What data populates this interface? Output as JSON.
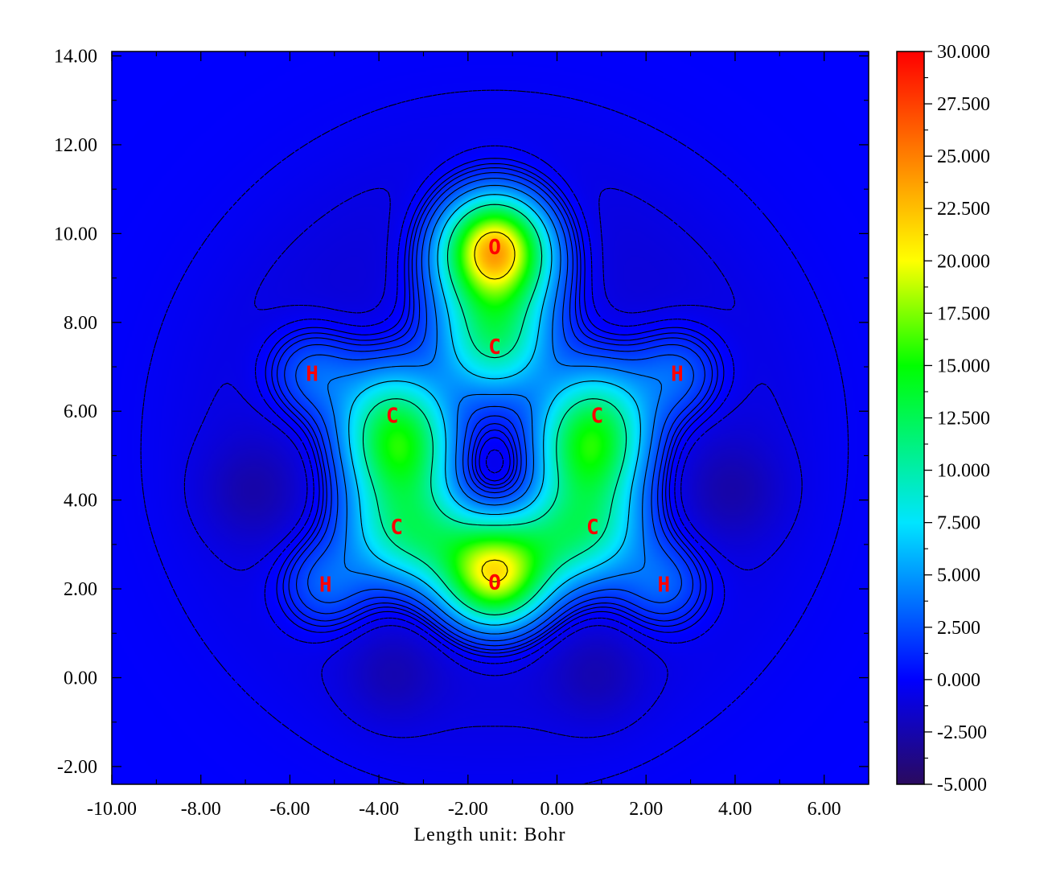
{
  "chart_data": {
    "type": "heatmap",
    "title": "",
    "xlabel": "Length unit: Bohr",
    "ylabel": "",
    "xlim": [
      -10.0,
      7.0
    ],
    "ylim": [
      -2.4,
      14.1
    ],
    "x_ticks": [
      "-10.00",
      "-8.00",
      "-6.00",
      "-4.00",
      "-2.00",
      "0.00",
      "2.00",
      "4.00",
      "6.00"
    ],
    "y_ticks": [
      "-2.00",
      "0.00",
      "2.00",
      "4.00",
      "6.00",
      "8.00",
      "10.00",
      "12.00",
      "14.00"
    ],
    "x_tick_values": [
      -10,
      -8,
      -6,
      -4,
      -2,
      0,
      2,
      4,
      6
    ],
    "y_tick_values": [
      -2,
      0,
      2,
      4,
      6,
      8,
      10,
      12,
      14
    ],
    "colorbar": {
      "range": [
        -5.0,
        30.0
      ],
      "ticks": [
        "30.000",
        "27.500",
        "25.000",
        "22.500",
        "20.000",
        "17.500",
        "15.000",
        "12.500",
        "10.000",
        "7.500",
        "5.000",
        "2.500",
        "0.000",
        "-2.500",
        "-5.000"
      ],
      "tick_values": [
        30,
        27.5,
        25,
        22.5,
        20,
        17.5,
        15,
        12.5,
        10,
        7.5,
        5,
        2.5,
        0,
        -2.5,
        -5
      ],
      "colors": [
        "#2a0a5e",
        "#0000ff",
        "#00e5ff",
        "#00ff00",
        "#ffff00",
        "#ff7f00",
        "#ff0000"
      ]
    },
    "atoms": [
      {
        "label": "O",
        "x": -1.4,
        "y": 9.7
      },
      {
        "label": "C",
        "x": -1.4,
        "y": 7.45
      },
      {
        "label": "H",
        "x": -5.5,
        "y": 6.85
      },
      {
        "label": "H",
        "x": 2.7,
        "y": 6.85
      },
      {
        "label": "C",
        "x": -3.7,
        "y": 5.9
      },
      {
        "label": "C",
        "x": 0.9,
        "y": 5.9
      },
      {
        "label": "C",
        "x": -3.6,
        "y": 3.4
      },
      {
        "label": "C",
        "x": 0.8,
        "y": 3.4
      },
      {
        "label": "H",
        "x": -5.2,
        "y": 2.1
      },
      {
        "label": "H",
        "x": 2.4,
        "y": 2.1
      },
      {
        "label": "O",
        "x": -1.4,
        "y": 2.15
      }
    ]
  }
}
